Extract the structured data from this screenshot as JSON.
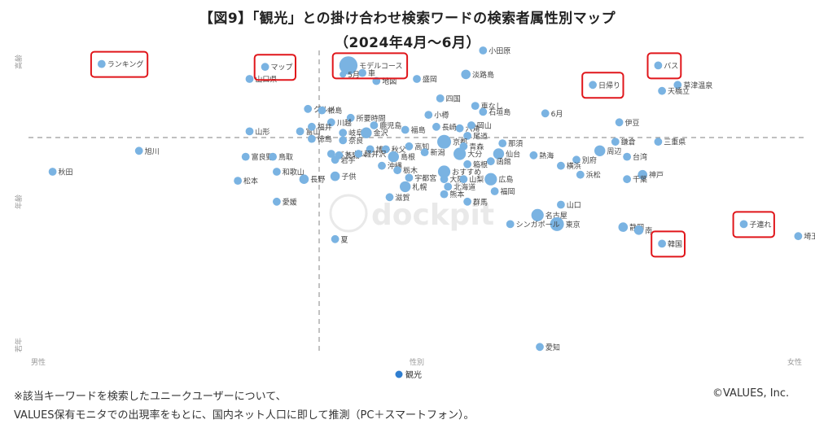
{
  "title_line1": "【図9】「観光」との掛け合わせ検索ワードの検索者属性別マップ",
  "title_line2": "（2024年4月〜6月）",
  "footnote_line1": "※該当キーワードを検索したユニークユーザーについて、",
  "footnote_line2": "VALUES保有モニタでの出現率をもとに、国内ネット人口に即して推測（PC＋スマートフォン）。",
  "credit": "©VALUES, Inc.",
  "watermark": "dockpit",
  "colors": {
    "point": "#7ab3e2",
    "center_point": "#2f7ed0",
    "highlight_box": "#e0161b",
    "axis_dash": "#9a9a9a",
    "axis_label": "#999999"
  },
  "chart_data": {
    "type": "scatter",
    "x_axis": {
      "label": "性別",
      "left_label": "男性",
      "right_label": "女性",
      "range": [
        0,
        100
      ]
    },
    "y_axis": {
      "label": "年齢",
      "top_label": "高齢",
      "bottom_label": "若年",
      "range": [
        0,
        100
      ]
    },
    "grid": false,
    "center_point": {
      "label": "観光"
    },
    "points": [
      {
        "label": "ランキング",
        "x": 9.5,
        "y": 95.5,
        "size": 3,
        "highlight": true
      },
      {
        "label": "マップ",
        "x": 30.5,
        "y": 94.5,
        "size": 3,
        "highlight": true
      },
      {
        "label": "山口県",
        "x": 28.5,
        "y": 90.5,
        "size": 3
      },
      {
        "label": "モデルコース",
        "x": 41.2,
        "y": 95.0,
        "size": 10,
        "highlight": true
      },
      {
        "label": "車",
        "x": 43.0,
        "y": 92.5,
        "size": 3
      },
      {
        "label": "地図",
        "x": 44.8,
        "y": 89.8,
        "size": 3
      },
      {
        "label": "5月",
        "x": 40.5,
        "y": 92.0,
        "size": 2
      },
      {
        "label": "盛岡",
        "x": 50.0,
        "y": 90.5,
        "size": 3
      },
      {
        "label": "淡路島",
        "x": 56.3,
        "y": 92.0,
        "size": 4
      },
      {
        "label": "小田原",
        "x": 58.5,
        "y": 100,
        "size": 3
      },
      {
        "label": "日帰り",
        "x": 72.6,
        "y": 88.5,
        "size": 3,
        "highlight": true
      },
      {
        "label": "バス",
        "x": 81.0,
        "y": 95.0,
        "size": 3,
        "highlight": true
      },
      {
        "label": "草津温泉",
        "x": 83.5,
        "y": 88.5,
        "size": 3
      },
      {
        "label": "天橋立",
        "x": 81.5,
        "y": 86.5,
        "size": 3
      },
      {
        "label": "四国",
        "x": 53.0,
        "y": 84.0,
        "size": 3
      },
      {
        "label": "車なし",
        "x": 57.5,
        "y": 81.5,
        "size": 3
      },
      {
        "label": "石垣島",
        "x": 58.5,
        "y": 79.5,
        "size": 3
      },
      {
        "label": "6月",
        "x": 66.5,
        "y": 79.0,
        "size": 3
      },
      {
        "label": "グルメ",
        "x": 36.0,
        "y": 80.5,
        "size": 3
      },
      {
        "label": "松島",
        "x": 37.8,
        "y": 80.0,
        "size": 3
      },
      {
        "label": "所要時間",
        "x": 41.5,
        "y": 77.5,
        "size": 3
      },
      {
        "label": "小樽",
        "x": 51.5,
        "y": 78.5,
        "size": 3
      },
      {
        "label": "川越",
        "x": 39.0,
        "y": 76.0,
        "size": 3
      },
      {
        "label": "鹿児島",
        "x": 44.5,
        "y": 75.0,
        "size": 3
      },
      {
        "label": "長崎",
        "x": 52.5,
        "y": 74.5,
        "size": 3
      },
      {
        "label": "六角",
        "x": 55.5,
        "y": 74.0,
        "size": 3
      },
      {
        "label": "岡山",
        "x": 57.0,
        "y": 75.0,
        "size": 3
      },
      {
        "label": "伊豆",
        "x": 76.0,
        "y": 76.0,
        "size": 3
      },
      {
        "label": "山形",
        "x": 28.5,
        "y": 73.0,
        "size": 3
      },
      {
        "label": "富山",
        "x": 35.0,
        "y": 73.0,
        "size": 3
      },
      {
        "label": "福井",
        "x": 36.5,
        "y": 74.5,
        "size": 3
      },
      {
        "label": "岐阜",
        "x": 40.5,
        "y": 72.5,
        "size": 3
      },
      {
        "label": "金沢",
        "x": 43.5,
        "y": 72.5,
        "size": 5
      },
      {
        "label": "福島",
        "x": 48.5,
        "y": 73.5,
        "size": 3
      },
      {
        "label": "尾道",
        "x": 56.5,
        "y": 71.5,
        "size": 3
      },
      {
        "label": "徳島",
        "x": 36.5,
        "y": 70.5,
        "size": 3
      },
      {
        "label": "奈良",
        "x": 40.5,
        "y": 70.0,
        "size": 3
      },
      {
        "label": "京都",
        "x": 53.5,
        "y": 69.5,
        "size": 7
      },
      {
        "label": "青森",
        "x": 56.0,
        "y": 68.0,
        "size": 3
      },
      {
        "label": "那須",
        "x": 61.0,
        "y": 69.0,
        "size": 3
      },
      {
        "label": "鎌倉",
        "x": 75.5,
        "y": 69.5,
        "size": 3
      },
      {
        "label": "三重県",
        "x": 81.0,
        "y": 69.5,
        "size": 3
      },
      {
        "label": "旭川",
        "x": 14.3,
        "y": 66.5,
        "size": 3
      },
      {
        "label": "ベトナム",
        "x": 39.0,
        "y": 65.5,
        "size": 3
      },
      {
        "label": "博多",
        "x": 44.0,
        "y": 67.0,
        "size": 3
      },
      {
        "label": "秋父",
        "x": 46.0,
        "y": 67.0,
        "size": 3
      },
      {
        "label": "高知",
        "x": 49.0,
        "y": 68.0,
        "size": 3
      },
      {
        "label": "新潟",
        "x": 51.0,
        "y": 66.0,
        "size": 3
      },
      {
        "label": "富良野",
        "x": 28.0,
        "y": 64.5,
        "size": 3
      },
      {
        "label": "鳥取",
        "x": 31.5,
        "y": 64.5,
        "size": 3
      },
      {
        "label": "茨城",
        "x": 40.0,
        "y": 65.0,
        "size": 3
      },
      {
        "label": "軽井沢",
        "x": 42.5,
        "y": 65.5,
        "size": 3
      },
      {
        "label": "島根",
        "x": 47.0,
        "y": 64.5,
        "size": 5
      },
      {
        "label": "大分",
        "x": 55.5,
        "y": 65.5,
        "size": 6
      },
      {
        "label": "仙台",
        "x": 60.5,
        "y": 65.5,
        "size": 5
      },
      {
        "label": "熱海",
        "x": 65.0,
        "y": 65.0,
        "size": 3
      },
      {
        "label": "周辺",
        "x": 73.5,
        "y": 66.5,
        "size": 5
      },
      {
        "label": "台湾",
        "x": 77.0,
        "y": 64.5,
        "size": 3
      },
      {
        "label": "別府",
        "x": 70.5,
        "y": 63.5,
        "size": 3
      },
      {
        "label": "岩手",
        "x": 39.5,
        "y": 63.5,
        "size": 3
      },
      {
        "label": "沖縄",
        "x": 45.5,
        "y": 61.5,
        "size": 3
      },
      {
        "label": "おすすめ",
        "x": 53.5,
        "y": 59.5,
        "size": 6
      },
      {
        "label": "箱根",
        "x": 56.5,
        "y": 62.0,
        "size": 3
      },
      {
        "label": "函館",
        "x": 59.5,
        "y": 63.0,
        "size": 3
      },
      {
        "label": "横浜",
        "x": 68.5,
        "y": 61.5,
        "size": 3
      },
      {
        "label": "秋田",
        "x": 3.2,
        "y": 59.5,
        "size": 3
      },
      {
        "label": "和歌山",
        "x": 32.0,
        "y": 59.5,
        "size": 3
      },
      {
        "label": "栃木",
        "x": 47.5,
        "y": 60.0,
        "size": 3
      },
      {
        "label": "浜松",
        "x": 71.0,
        "y": 58.5,
        "size": 3
      },
      {
        "label": "神戸",
        "x": 79.0,
        "y": 58.5,
        "size": 4
      },
      {
        "label": "子供",
        "x": 39.5,
        "y": 58.0,
        "size": 4
      },
      {
        "label": "宇都宮",
        "x": 49.0,
        "y": 57.5,
        "size": 3
      },
      {
        "label": "大阪",
        "x": 53.5,
        "y": 57.0,
        "size": 3
      },
      {
        "label": "山梨",
        "x": 56.0,
        "y": 57.0,
        "size": 3
      },
      {
        "label": "広島",
        "x": 59.5,
        "y": 57.0,
        "size": 6
      },
      {
        "label": "松本",
        "x": 27.0,
        "y": 56.5,
        "size": 3
      },
      {
        "label": "長野",
        "x": 35.5,
        "y": 57.0,
        "size": 4
      },
      {
        "label": "札幌",
        "x": 48.5,
        "y": 54.5,
        "size": 5
      },
      {
        "label": "北海道",
        "x": 54.0,
        "y": 54.5,
        "size": 3
      },
      {
        "label": "千葉",
        "x": 77.0,
        "y": 57.0,
        "size": 3
      },
      {
        "label": "熊本",
        "x": 53.5,
        "y": 52.0,
        "size": 3
      },
      {
        "label": "福岡",
        "x": 60.0,
        "y": 53.0,
        "size": 3
      },
      {
        "label": "滋賀",
        "x": 46.5,
        "y": 51.0,
        "size": 3
      },
      {
        "label": "群馬",
        "x": 56.5,
        "y": 49.5,
        "size": 3
      },
      {
        "label": "愛媛",
        "x": 32.0,
        "y": 49.5,
        "size": 3
      },
      {
        "label": "山口",
        "x": 68.5,
        "y": 48.5,
        "size": 3
      },
      {
        "label": "名古屋",
        "x": 65.5,
        "y": 45.0,
        "size": 6
      },
      {
        "label": "東京",
        "x": 68.0,
        "y": 42.0,
        "size": 7
      },
      {
        "label": "シンガポール",
        "x": 62.0,
        "y": 42.0,
        "size": 3
      },
      {
        "label": "静岡",
        "x": 76.5,
        "y": 41.0,
        "size": 4
      },
      {
        "label": "南",
        "x": 78.5,
        "y": 40.0,
        "size": 4
      },
      {
        "label": "子連れ",
        "x": 92.0,
        "y": 42.0,
        "size": 3,
        "highlight": true
      },
      {
        "label": "韓国",
        "x": 81.5,
        "y": 35.5,
        "size": 3,
        "highlight": true
      },
      {
        "label": "埼玉",
        "x": 99.0,
        "y": 38.0,
        "size": 3
      },
      {
        "label": "夏",
        "x": 39.5,
        "y": 37.0,
        "size": 3
      },
      {
        "label": "愛知",
        "x": 65.8,
        "y": 1.0,
        "size": 3
      }
    ]
  }
}
